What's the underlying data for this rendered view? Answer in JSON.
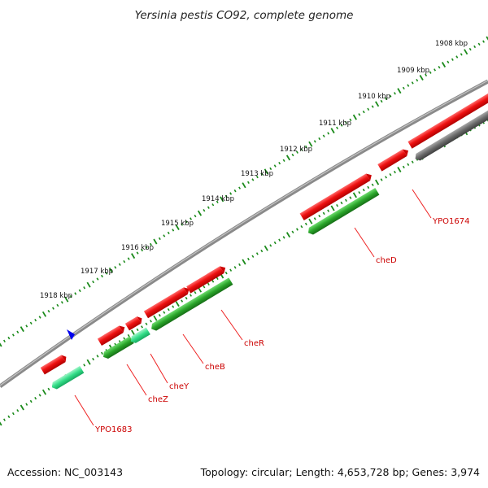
{
  "title": "Yersinia pestis CO92, complete genome",
  "footer": {
    "accession": "Accession: NC_003143",
    "summary": "Topology: circular; Length: 4,653,728 bp; Genes: 3,974"
  },
  "ruler": {
    "unit": "kbp",
    "labels": [
      "1908 kbp",
      "1909 kbp",
      "1910 kbp",
      "1911 kbp",
      "1912 kbp",
      "1913 kbp",
      "1914 kbp",
      "1915 kbp",
      "1916 kbp",
      "1917 kbp",
      "1918 kbp"
    ]
  },
  "colors": {
    "forward_cds": "#ee1111",
    "reverse_cds": "#2aa52a",
    "light_reverse_cds": "#33dd88",
    "other_feature": "#6a6a6a",
    "backbone": "#8a8a8a",
    "tick_green": "#1a8a1a",
    "label_red": "#cc0000",
    "marker": "#0000ee"
  },
  "genes": [
    {
      "name": "YPO1674",
      "start_kbp": 1908.6,
      "end_kbp": 1909.7,
      "strand": "reverse",
      "color": "#6a6a6a",
      "labeled": true
    },
    {
      "name": "cheD",
      "start_kbp": 1911.8,
      "end_kbp": 1913.5,
      "strand": "reverse",
      "color": "#2aa52a",
      "labeled": true
    },
    {
      "name": "cheR",
      "start_kbp": 1914.9,
      "end_kbp": 1916.6,
      "strand": "reverse",
      "color": "#2aa52a",
      "labeled": true
    },
    {
      "name": "cheB",
      "start_kbp": 1915.9,
      "end_kbp": 1916.5,
      "strand": "reverse",
      "color": "#2aa52a",
      "labeled": true
    },
    {
      "name": "cheY",
      "start_kbp": 1916.6,
      "end_kbp": 1917.0,
      "strand": "reverse",
      "color": "#33dd88",
      "labeled": true
    },
    {
      "name": "cheZ",
      "start_kbp": 1917.0,
      "end_kbp": 1917.8,
      "strand": "reverse",
      "color": "#2aa52a",
      "labeled": true
    },
    {
      "name": "YPO1683",
      "start_kbp": 1918.5,
      "end_kbp": 1919.4,
      "strand": "reverse",
      "color": "#33dd88",
      "labeled": true
    }
  ]
}
